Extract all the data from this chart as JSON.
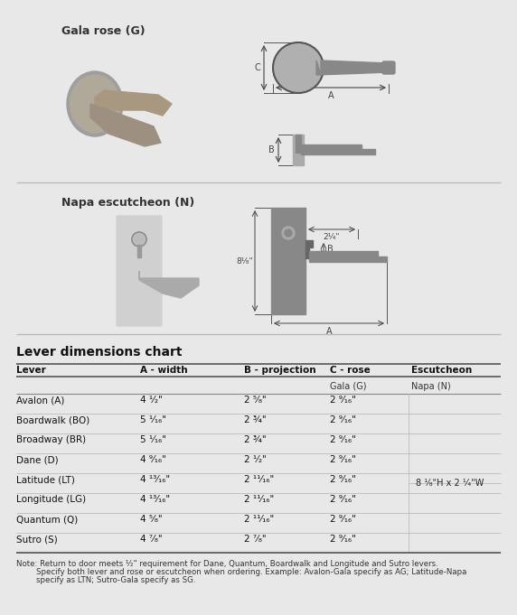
{
  "bg_color": "#e8e8e8",
  "title_section": "Gala rose (G)",
  "title_section2": "Napa escutcheon (N)",
  "table_title": "Lever dimensions chart",
  "col_headers": [
    "Lever",
    "A - width",
    "B - projection",
    "C - rose",
    "Escutcheon"
  ],
  "sub_headers": [
    "",
    "",
    "",
    "Gala (G)",
    "Napa (N)"
  ],
  "rows": [
    [
      "Avalon (A)",
      "4 ¹⁄₂\"",
      "2 ⁵⁄₈\"",
      "2 ⁹⁄₁₆\"",
      ""
    ],
    [
      "Boardwalk (BO)",
      "5 ¹⁄₁₆\"",
      "2 ¾\"",
      "2 ⁹⁄₁₆\"",
      ""
    ],
    [
      "Broadway (BR)",
      "5 ¹⁄₁₆\"",
      "2 ¾\"",
      "2 ⁹⁄₁₆\"",
      ""
    ],
    [
      "Dane (D)",
      "4 ⁹⁄₁₆\"",
      "2 ¹⁄₂\"",
      "2 ⁹⁄₁₆\"",
      ""
    ],
    [
      "Latitude (LT)",
      "4 ¹³⁄₁₆\"",
      "2 ¹¹⁄₁₆\"",
      "2 ⁹⁄₁₆\"",
      ""
    ],
    [
      "Longitude (LG)",
      "4 ¹³⁄₁₆\"",
      "2 ¹¹⁄₁₆\"",
      "2 ⁹⁄₁₆\"",
      ""
    ],
    [
      "Quantum (Q)",
      "4 ⁵⁄₈\"",
      "2 ¹¹⁄₁₆\"",
      "2 ⁹⁄₁₆\"",
      ""
    ],
    [
      "Sutro (S)",
      "4 ⁷⁄₈\"",
      "2 ⁷⁄₈\"",
      "2 ⁹⁄₁₆\"",
      ""
    ]
  ],
  "escutcheon_label": "8 ¹⁄₈\"H x 2 ¹⁄₄\"W",
  "note_line1": "Note: Return to door meets ¹⁄₂\" requirement for Dane, Quantum, Boardwalk and Longitude and Sutro levers.",
  "note_line2": "        Specify both lever and rose or escutcheon when ordering. Example: Avalon-Gala specify as AG; Latitude-Napa",
  "note_line3": "        specify as LTN; Sutro-Gala specify as SG.",
  "dim_labels_gala": [
    "C",
    "A",
    "B"
  ],
  "dim_labels_napa": [
    "2¹⁄₄\"",
    "B",
    "8¹⁄₈\"",
    "A"
  ],
  "text_color": "#222222",
  "line_color": "#aaaaaa",
  "header_color": "#111111"
}
